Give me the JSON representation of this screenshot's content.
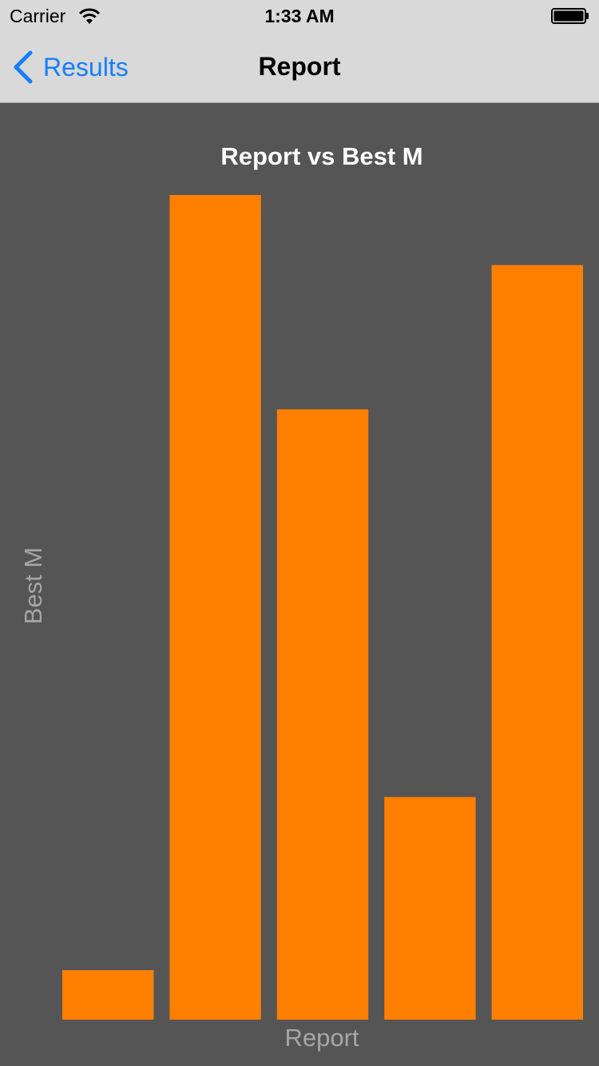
{
  "status_bar": {
    "carrier": "Carrier",
    "time": "1:33 AM",
    "wifi_icon": "wifi-icon",
    "battery_icon": "battery-icon"
  },
  "nav_bar": {
    "back_label": "Results",
    "back_icon": "chevron-left-icon",
    "title": "Report"
  },
  "colors": {
    "bar": "#ff7f00",
    "background": "#555555",
    "title": "#ffffff",
    "axis_label": "#a6a6a6",
    "link": "#157efb"
  },
  "chart_data": {
    "type": "bar",
    "title": "Report vs Best M",
    "xlabel": "Report",
    "ylabel": "Best M",
    "categories": [
      "",
      "",
      "",
      "",
      ""
    ],
    "values": [
      6,
      100,
      74,
      27,
      91.5
    ],
    "ylim": [
      0,
      100
    ],
    "grid": false,
    "legend": "none"
  }
}
